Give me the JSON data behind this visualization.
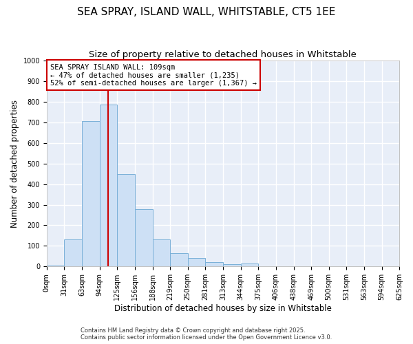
{
  "title": "SEA SPRAY, ISLAND WALL, WHITSTABLE, CT5 1EE",
  "subtitle": "Size of property relative to detached houses in Whitstable",
  "xlabel": "Distribution of detached houses by size in Whitstable",
  "ylabel": "Number of detached properties",
  "bin_edges": [
    0,
    31,
    63,
    94,
    125,
    156,
    188,
    219,
    250,
    281,
    313,
    344,
    375,
    406,
    438,
    469,
    500,
    531,
    563,
    594,
    625
  ],
  "bar_heights": [
    5,
    130,
    705,
    785,
    450,
    280,
    130,
    65,
    40,
    22,
    10,
    15,
    0,
    0,
    0,
    0,
    0,
    0,
    0,
    0
  ],
  "bar_color": "#cde0f5",
  "bar_edgecolor": "#7ab0d8",
  "property_size": 109,
  "vline_color": "#cc0000",
  "ylim": [
    0,
    1000
  ],
  "yticks": [
    0,
    100,
    200,
    300,
    400,
    500,
    600,
    700,
    800,
    900,
    1000
  ],
  "annotation_title": "SEA SPRAY ISLAND WALL: 109sqm",
  "annotation_line1": "← 47% of detached houses are smaller (1,235)",
  "annotation_line2": "52% of semi-detached houses are larger (1,367) →",
  "annotation_box_color": "#ffffff",
  "annotation_box_edgecolor": "#cc0000",
  "plot_bg_color": "#e8eef8",
  "fig_bg_color": "#ffffff",
  "grid_color": "#ffffff",
  "title_fontsize": 11,
  "subtitle_fontsize": 9.5,
  "tick_label_fontsize": 7,
  "ylabel_fontsize": 8.5,
  "xlabel_fontsize": 8.5,
  "annotation_fontsize": 7.5,
  "footer_line1": "Contains HM Land Registry data © Crown copyright and database right 2025.",
  "footer_line2": "Contains public sector information licensed under the Open Government Licence v3.0."
}
